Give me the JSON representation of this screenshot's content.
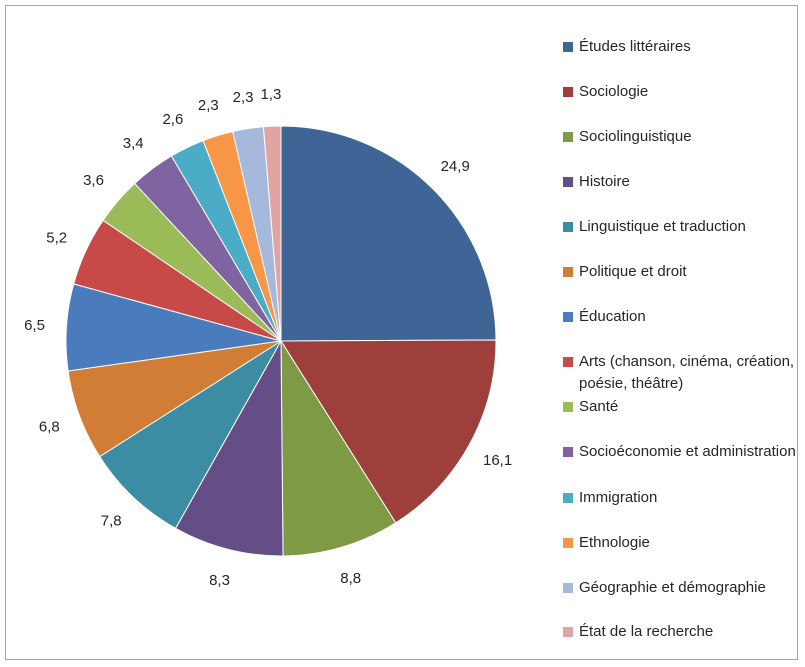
{
  "chart_data": {
    "type": "pie",
    "title": "",
    "categories": [
      "Études littéraires",
      "Sociologie",
      "Sociolinguistique",
      "Histoire",
      "Linguistique et traduction",
      "Politique et droit",
      "Éducation",
      "Arts (chanson, cinéma, création, poésie, théâtre)",
      "Santé",
      "Socioéconomie et administration",
      "Immigration",
      "Ethnologie",
      "Géographie et démographie",
      "État de la recherche"
    ],
    "values": [
      24.9,
      16.1,
      8.8,
      8.3,
      7.8,
      6.8,
      6.5,
      5.2,
      3.6,
      3.4,
      2.6,
      2.3,
      2.3,
      1.3
    ],
    "value_labels": [
      "24,9",
      "16,1",
      "8,8",
      "8,3",
      "7,8",
      "6,8",
      "6,5",
      "5,2",
      "3,6",
      "3,4",
      "2,6",
      "2,3",
      "2,3",
      "1,3"
    ],
    "colors": [
      "#3f6597",
      "#9e3f3c",
      "#7e9a45",
      "#654e86",
      "#3c8ca3",
      "#d27d35",
      "#4a7bbd",
      "#c74a48",
      "#9bbb59",
      "#8064a2",
      "#4aacc6",
      "#f79646",
      "#a6b9dc",
      "#e0a4a3"
    ],
    "legend_position": "right"
  }
}
